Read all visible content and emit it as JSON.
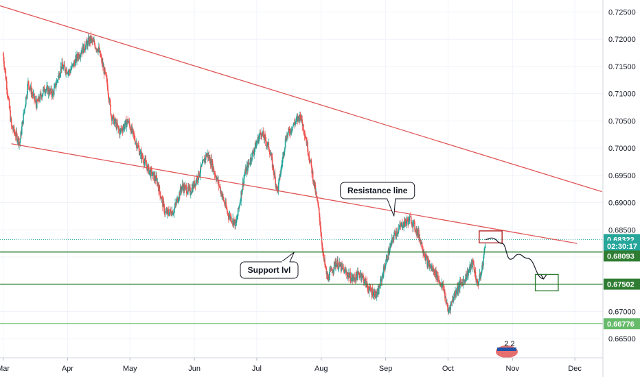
{
  "chart_data": {
    "type": "candlestick",
    "y_axis": {
      "range": [
        0.6615,
        0.7272
      ],
      "ticks": [
        "0.72500",
        "0.72000",
        "0.71500",
        "0.71000",
        "0.70500",
        "0.70000",
        "0.69500",
        "0.69000",
        "0.68500",
        "0.68000",
        "0.67500",
        "0.67000",
        "0.66500"
      ]
    },
    "x_axis": {
      "labels": [
        "Mar",
        "Apr",
        "May",
        "Jun",
        "Jul",
        "Aug",
        "Sep",
        "Oct",
        "Nov",
        "Dec"
      ],
      "label_pos": [
        0,
        31,
        61,
        92,
        122,
        153,
        184,
        214,
        245,
        275
      ]
    },
    "price_path": [
      [
        0,
        0.7172
      ],
      [
        4,
        0.704
      ],
      [
        8,
        0.701
      ],
      [
        12,
        0.712
      ],
      [
        16,
        0.708
      ],
      [
        20,
        0.711
      ],
      [
        24,
        0.71
      ],
      [
        28,
        0.715
      ],
      [
        32,
        0.714
      ],
      [
        36,
        0.717
      ],
      [
        42,
        0.72
      ],
      [
        46,
        0.718
      ],
      [
        50,
        0.712
      ],
      [
        52,
        0.706
      ],
      [
        56,
        0.703
      ],
      [
        60,
        0.705
      ],
      [
        64,
        0.701
      ],
      [
        66,
        0.699
      ],
      [
        70,
        0.696
      ],
      [
        74,
        0.694
      ],
      [
        78,
        0.688
      ],
      [
        82,
        0.6885
      ],
      [
        86,
        0.693
      ],
      [
        90,
        0.692
      ],
      [
        94,
        0.695
      ],
      [
        98,
        0.699
      ],
      [
        100,
        0.6975
      ],
      [
        104,
        0.693
      ],
      [
        108,
        0.688
      ],
      [
        112,
        0.686
      ],
      [
        116,
        0.695
      ],
      [
        120,
        0.699
      ],
      [
        124,
        0.703
      ],
      [
        128,
        0.7
      ],
      [
        132,
        0.692
      ],
      [
        136,
        0.702
      ],
      [
        140,
        0.7045
      ],
      [
        143,
        0.706
      ],
      [
        145,
        0.703
      ],
      [
        148,
        0.697
      ],
      [
        152,
        0.688
      ],
      [
        154,
        0.68
      ],
      [
        156,
        0.676
      ],
      [
        160,
        0.679
      ],
      [
        164,
        0.6775
      ],
      [
        168,
        0.676
      ],
      [
        172,
        0.677
      ],
      [
        176,
        0.674
      ],
      [
        180,
        0.673
      ],
      [
        184,
        0.679
      ],
      [
        188,
        0.684
      ],
      [
        192,
        0.686
      ],
      [
        196,
        0.687
      ],
      [
        200,
        0.684
      ],
      [
        204,
        0.679
      ],
      [
        208,
        0.677
      ],
      [
        212,
        0.674
      ],
      [
        214,
        0.67
      ],
      [
        218,
        0.674
      ],
      [
        222,
        0.676
      ],
      [
        226,
        0.679
      ],
      [
        228,
        0.675
      ],
      [
        230,
        0.677
      ],
      [
        232,
        0.6825
      ]
    ],
    "lines": [
      {
        "name": "upper-trend",
        "color": "#e05555",
        "from": [
          -2,
          0.7262
        ],
        "to": [
          288,
          0.692
        ]
      },
      {
        "name": "resistance-trend",
        "color": "#e05555",
        "from": [
          4,
          0.7008
        ],
        "to": [
          276,
          0.6825
        ]
      }
    ],
    "horizontal_lines": [
      {
        "price": 0.68322,
        "color": "#26a69a",
        "style": "dotted"
      },
      {
        "price": 0.68093,
        "color": "#2e7d32",
        "style": "solid"
      },
      {
        "price": 0.67502,
        "color": "#2e7d32",
        "style": "solid"
      },
      {
        "price": 0.66776,
        "color": "#66bb6a",
        "style": "solid"
      }
    ],
    "price_tags": [
      {
        "label": "0.68322",
        "price": 0.68322,
        "color": "#26a69a"
      },
      {
        "label": "02:30:17",
        "price": 0.682,
        "color": "#26a69a"
      },
      {
        "label": "0.68093",
        "price": 0.6802,
        "color": "#2e7d32"
      },
      {
        "label": "0.67502",
        "price": 0.67502,
        "color": "#2e7d32"
      },
      {
        "label": "0.66776",
        "price": 0.66776,
        "color": "#66bb6a"
      }
    ],
    "callouts": [
      {
        "text": "Resistance line",
        "anchor": [
          188,
          0.6875
        ]
      },
      {
        "text": "Support lvl",
        "anchor": [
          140,
          0.6809
        ]
      }
    ],
    "boxes": [
      {
        "name": "red-box",
        "color": "#b22222",
        "x": [
          229,
          240
        ],
        "price": [
          0.6848,
          0.6826
        ]
      },
      {
        "name": "green-box",
        "color": "#2e7d32",
        "x": [
          256,
          267
        ],
        "price": [
          0.6768,
          0.6738
        ]
      }
    ],
    "projection": [
      [
        232,
        0.68322
      ],
      [
        235,
        0.6835
      ],
      [
        240,
        0.6825
      ],
      [
        244,
        0.6796
      ],
      [
        248,
        0.6805
      ],
      [
        252,
        0.6798
      ],
      [
        260,
        0.676
      ]
    ],
    "earnings_badge": "2 2"
  },
  "colors": {
    "up": "#26a69a",
    "down": "#ef5350",
    "grid": "#f0f3fa",
    "axis_text": "#131722",
    "background": "#ffffff"
  }
}
